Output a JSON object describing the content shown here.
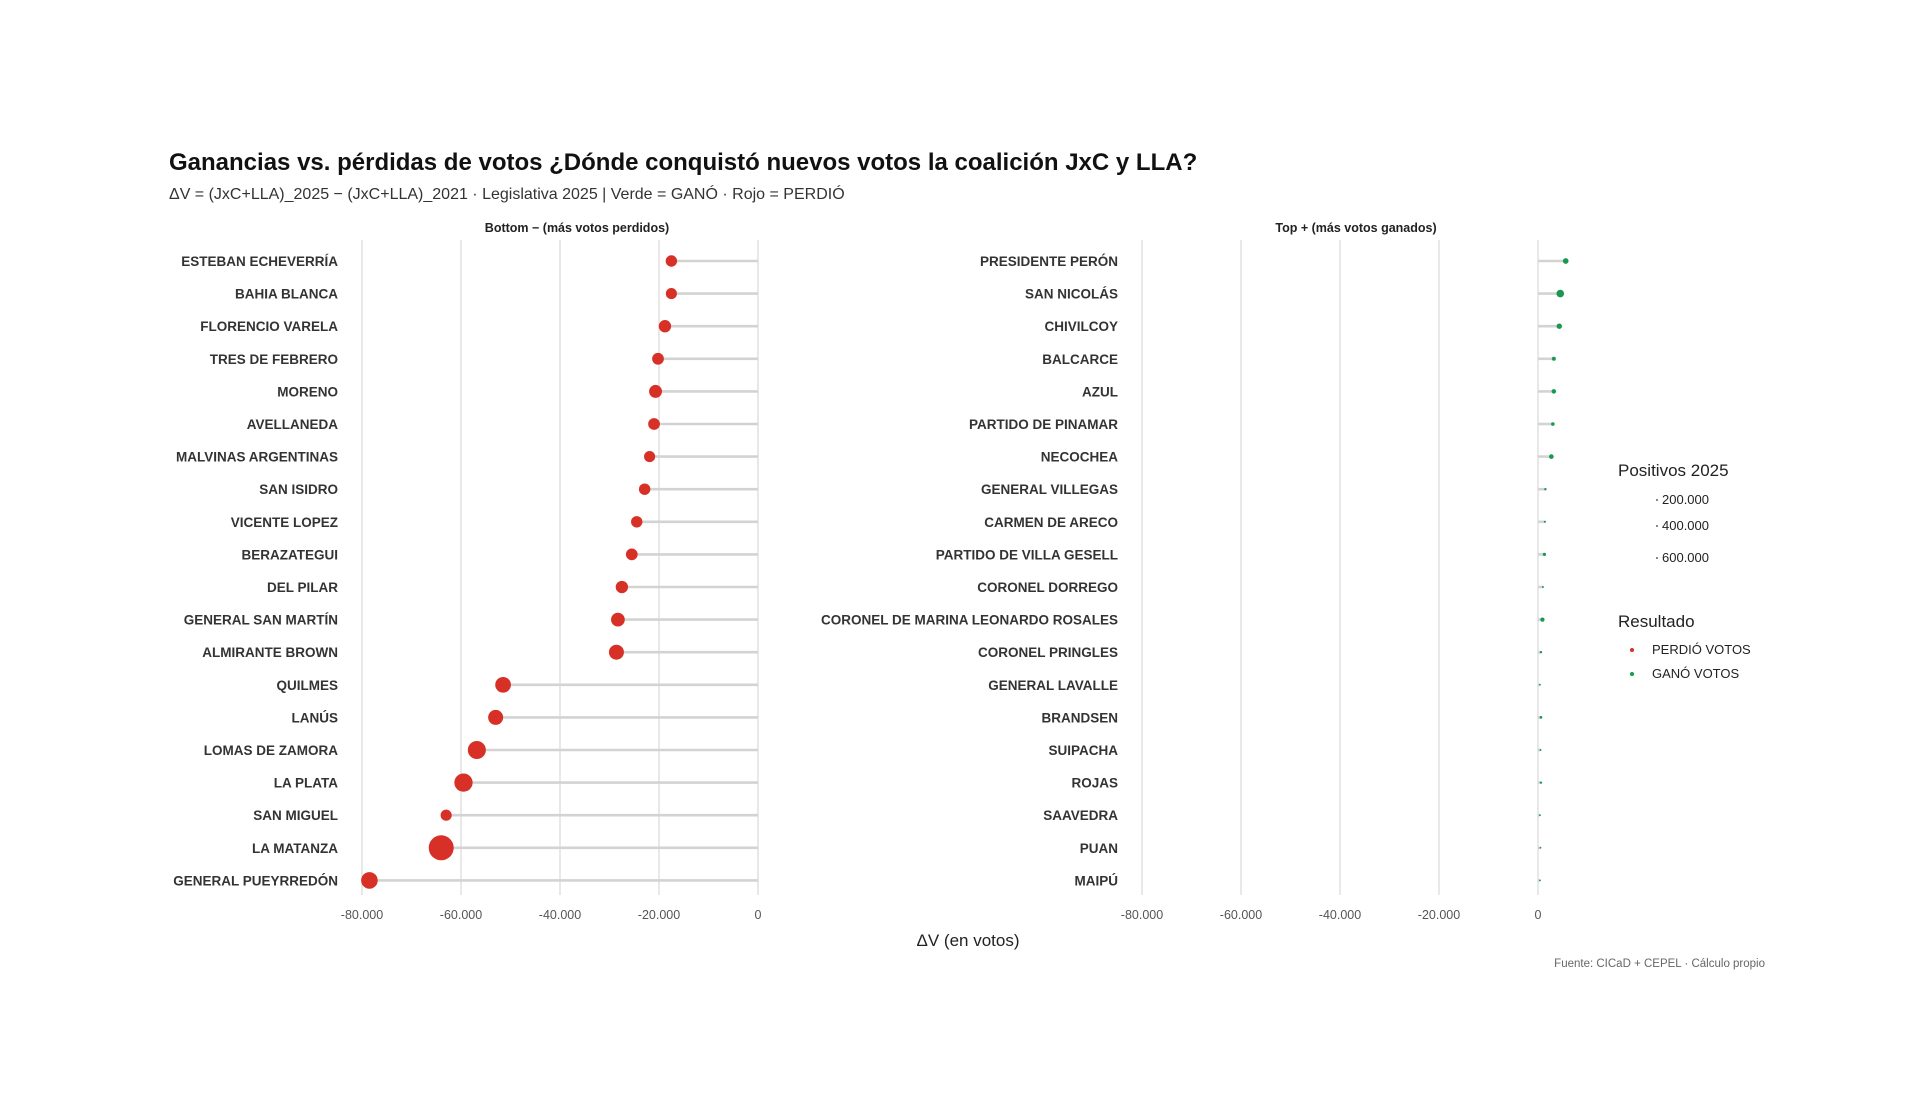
{
  "title": "Ganancias vs. pérdidas de votos ¿Dónde conquistó nuevos votos la coalición JxC y LLA?",
  "subtitle": "ΔV = (JxC+LLA)_2025 − (JxC+LLA)_2021 · Legislativa 2025 | Verde = GANÓ · Rojo = PERDIÓ",
  "caption": "Fuente: CICaD + CEPEL · Cálculo propio",
  "colors": {
    "lost": "#d73027",
    "won": "#1a9850",
    "grid": "#d9d9d9",
    "segment": "#d3d3d3"
  },
  "chart_data": {
    "type": "lollipop",
    "xlabel": "ΔV (en votos)",
    "xlim": [
      -80000,
      0
    ],
    "xticks": [
      -80000,
      -60000,
      -40000,
      -20000,
      0
    ],
    "xtick_labels": [
      "-80.000",
      "-60.000",
      "-40.000",
      "-20.000",
      "0"
    ],
    "size_legend": {
      "title": "Positivos 2025",
      "values": [
        200000,
        400000,
        600000
      ],
      "labels": [
        "200.000",
        "400.000",
        "600.000"
      ]
    },
    "color_legend": {
      "title": "Resultado",
      "entries": [
        {
          "label": "PERDIÓ VOTOS",
          "color": "#d73027"
        },
        {
          "label": "GANÓ VOTOS",
          "color": "#1a9850"
        }
      ]
    },
    "panels": [
      {
        "title": "Bottom − (más votos perdidos)",
        "result": "lost",
        "categories": [
          "ESTEBAN ECHEVERRÍA",
          "BAHIA BLANCA",
          "FLORENCIO VARELA",
          "TRES DE FEBRERO",
          "MORENO",
          "AVELLANEDA",
          "MALVINAS ARGENTINAS",
          "SAN ISIDRO",
          "VICENTE LOPEZ",
          "BERAZATEGUI",
          "DEL PILAR",
          "GENERAL SAN MARTÍN",
          "ALMIRANTE BROWN",
          "QUILMES",
          "LANÚS",
          "LOMAS DE ZAMORA",
          "LA PLATA",
          "SAN MIGUEL",
          "LA MATANZA",
          "GENERAL PUEYRREDÓN"
        ],
        "values": [
          -17500,
          -17500,
          -18800,
          -20200,
          -20700,
          -21000,
          -21900,
          -22900,
          -24500,
          -25500,
          -27500,
          -28300,
          -28600,
          -51500,
          -53000,
          -56800,
          -59500,
          -63000,
          -64000,
          -78500
        ],
        "size_values": [
          180000,
          170000,
          210000,
          190000,
          230000,
          190000,
          170000,
          180000,
          180000,
          190000,
          210000,
          260000,
          310000,
          340000,
          310000,
          450000,
          460000,
          170000,
          860000,
          380000
        ]
      },
      {
        "title": "Top + (más votos ganados)",
        "result": "won",
        "categories": [
          "PRESIDENTE PERÓN",
          "SAN NICOLÁS",
          "CHIVILCOY",
          "BALCARCE",
          "AZUL",
          "PARTIDO DE PINAMAR",
          "NECOCHEA",
          "GENERAL VILLEGAS",
          "CARMEN DE ARECO",
          "PARTIDO DE VILLA GESELL",
          "CORONEL DORREGO",
          "CORONEL DE MARINA LEONARDO ROSALES",
          "CORONEL PRINGLES",
          "GENERAL LAVALLE",
          "BRANDSEN",
          "SUIPACHA",
          "ROJAS",
          "SAAVEDRA",
          "PUAN",
          "MAIPÚ"
        ],
        "values": [
          5600,
          4500,
          4300,
          3200,
          3200,
          3000,
          2700,
          1500,
          1400,
          1300,
          1000,
          900,
          600,
          400,
          600,
          500,
          600,
          400,
          500,
          400
        ],
        "size_values": [
          45000,
          80000,
          40000,
          22000,
          28000,
          18000,
          30000,
          8000,
          6000,
          14000,
          5000,
          24000,
          8000,
          3000,
          10000,
          5000,
          7000,
          4000,
          3000,
          4000
        ]
      }
    ]
  }
}
